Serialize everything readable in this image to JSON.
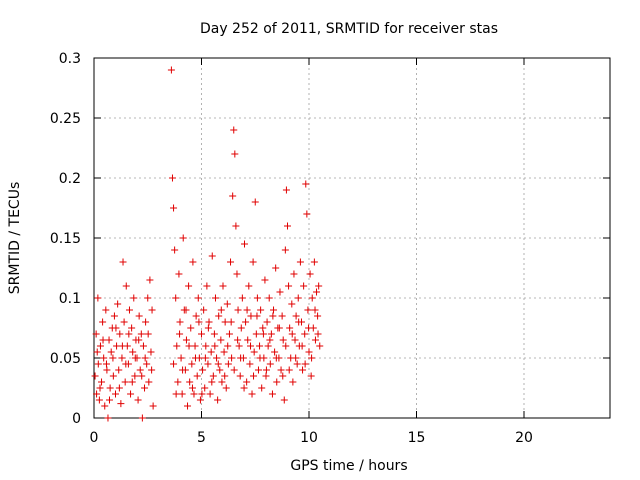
{
  "chart_data": {
    "type": "scatter",
    "title": "Day 252 of 2011, SRMTID for receiver stas",
    "xlabel": "GPS time / hours",
    "ylabel": "SRMTID / TECUs",
    "xlim": [
      0,
      24
    ],
    "ylim": [
      0,
      0.3
    ],
    "xticks": [
      0,
      5,
      10,
      15,
      20
    ],
    "xtick_labels": [
      "0",
      "5",
      "10",
      "15",
      "20"
    ],
    "yticks": [
      0,
      0.05,
      0.1,
      0.15,
      0.2,
      0.25,
      0.3
    ],
    "ytick_labels": [
      "0",
      "0.05",
      "0.1",
      "0.15",
      "0.2",
      "0.25",
      "0.3"
    ],
    "grid": true,
    "marker": "+",
    "color": "#e00000",
    "series": [
      {
        "name": "SRMTID",
        "points": [
          [
            0.05,
            0.035
          ],
          [
            0.1,
            0.07
          ],
          [
            0.12,
            0.02
          ],
          [
            0.18,
            0.1
          ],
          [
            0.2,
            0.045
          ],
          [
            0.25,
            0.015
          ],
          [
            0.3,
            0.06
          ],
          [
            0.35,
            0.03
          ],
          [
            0.4,
            0.08
          ],
          [
            0.45,
            0.05
          ],
          [
            0.5,
            0.01
          ],
          [
            0.55,
            0.09
          ],
          [
            0.6,
            0.04
          ],
          [
            0.65,
            0.0
          ],
          [
            0.7,
            0.065
          ],
          [
            0.75,
            0.025
          ],
          [
            0.8,
            0.055
          ],
          [
            0.85,
            0.075
          ],
          [
            0.9,
            0.035
          ],
          [
            0.95,
            0.085
          ],
          [
            1.0,
            0.02
          ],
          [
            1.05,
            0.06
          ],
          [
            1.1,
            0.095
          ],
          [
            1.15,
            0.04
          ],
          [
            1.2,
            0.07
          ],
          [
            1.25,
            0.012
          ],
          [
            1.3,
            0.05
          ],
          [
            1.35,
            0.13
          ],
          [
            1.4,
            0.08
          ],
          [
            1.45,
            0.03
          ],
          [
            1.5,
            0.11
          ],
          [
            1.55,
            0.06
          ],
          [
            1.6,
            0.045
          ],
          [
            1.65,
            0.09
          ],
          [
            1.7,
            0.02
          ],
          [
            1.75,
            0.075
          ],
          [
            1.8,
            0.055
          ],
          [
            1.85,
            0.1
          ],
          [
            1.9,
            0.035
          ],
          [
            1.95,
            0.065
          ],
          [
            2.0,
            0.05
          ],
          [
            2.05,
            0.015
          ],
          [
            2.1,
            0.085
          ],
          [
            2.15,
            0.04
          ],
          [
            2.2,
            0.07
          ],
          [
            2.25,
            0.0
          ],
          [
            2.3,
            0.06
          ],
          [
            2.35,
            0.025
          ],
          [
            2.4,
            0.08
          ],
          [
            2.45,
            0.045
          ],
          [
            2.5,
            0.1
          ],
          [
            2.55,
            0.03
          ],
          [
            2.6,
            0.115
          ],
          [
            2.65,
            0.055
          ],
          [
            2.7,
            0.09
          ],
          [
            2.75,
            0.01
          ],
          [
            0.15,
            0.055
          ],
          [
            0.28,
            0.025
          ],
          [
            0.42,
            0.065
          ],
          [
            0.58,
            0.045
          ],
          [
            0.72,
            0.015
          ],
          [
            0.88,
            0.05
          ],
          [
            1.02,
            0.075
          ],
          [
            1.18,
            0.025
          ],
          [
            1.32,
            0.06
          ],
          [
            1.48,
            0.045
          ],
          [
            1.62,
            0.07
          ],
          [
            1.78,
            0.03
          ],
          [
            1.92,
            0.05
          ],
          [
            2.08,
            0.065
          ],
          [
            2.22,
            0.035
          ],
          [
            2.38,
            0.05
          ],
          [
            2.52,
            0.07
          ],
          [
            2.68,
            0.04
          ],
          [
            3.6,
            0.29
          ],
          [
            3.65,
            0.2
          ],
          [
            3.7,
            0.175
          ],
          [
            3.75,
            0.14
          ],
          [
            3.8,
            0.1
          ],
          [
            3.85,
            0.06
          ],
          [
            3.9,
            0.03
          ],
          [
            3.95,
            0.12
          ],
          [
            4.0,
            0.08
          ],
          [
            4.05,
            0.05
          ],
          [
            4.1,
            0.02
          ],
          [
            4.15,
            0.15
          ],
          [
            4.2,
            0.09
          ],
          [
            4.25,
            0.04
          ],
          [
            4.3,
            0.065
          ],
          [
            4.35,
            0.01
          ],
          [
            4.4,
            0.11
          ],
          [
            4.45,
            0.03
          ],
          [
            4.5,
            0.075
          ],
          [
            4.55,
            0.045
          ],
          [
            4.6,
            0.13
          ],
          [
            4.65,
            0.02
          ],
          [
            4.7,
            0.06
          ],
          [
            4.75,
            0.085
          ],
          [
            4.8,
            0.035
          ],
          [
            4.85,
            0.1
          ],
          [
            4.9,
            0.05
          ],
          [
            4.95,
            0.015
          ],
          [
            5.0,
            0.07
          ],
          [
            5.05,
            0.04
          ],
          [
            5.1,
            0.09
          ],
          [
            5.15,
            0.025
          ],
          [
            5.2,
            0.06
          ],
          [
            5.25,
            0.11
          ],
          [
            5.3,
            0.045
          ],
          [
            5.35,
            0.08
          ],
          [
            5.4,
            0.02
          ],
          [
            5.45,
            0.055
          ],
          [
            5.5,
            0.135
          ],
          [
            5.55,
            0.035
          ],
          [
            5.6,
            0.07
          ],
          [
            5.65,
            0.1
          ],
          [
            5.7,
            0.05
          ],
          [
            5.75,
            0.015
          ],
          [
            5.8,
            0.085
          ],
          [
            5.85,
            0.04
          ],
          [
            5.9,
            0.065
          ],
          [
            5.95,
            0.03
          ],
          [
            6.0,
            0.11
          ],
          [
            6.05,
            0.055
          ],
          [
            6.1,
            0.08
          ],
          [
            6.15,
            0.025
          ],
          [
            6.2,
            0.095
          ],
          [
            6.25,
            0.045
          ],
          [
            6.3,
            0.07
          ],
          [
            6.35,
            0.13
          ],
          [
            6.4,
            0.05
          ],
          [
            6.45,
            0.185
          ],
          [
            6.5,
            0.24
          ],
          [
            6.55,
            0.22
          ],
          [
            6.6,
            0.16
          ],
          [
            6.65,
            0.12
          ],
          [
            6.7,
            0.09
          ],
          [
            6.75,
            0.06
          ],
          [
            6.8,
            0.035
          ],
          [
            6.85,
            0.075
          ],
          [
            6.9,
            0.1
          ],
          [
            6.95,
            0.05
          ],
          [
            7.0,
            0.145
          ],
          [
            7.05,
            0.08
          ],
          [
            7.1,
            0.03
          ],
          [
            7.15,
            0.065
          ],
          [
            7.2,
            0.11
          ],
          [
            7.25,
            0.045
          ],
          [
            7.3,
            0.085
          ],
          [
            7.35,
            0.02
          ],
          [
            7.4,
            0.13
          ],
          [
            7.45,
            0.055
          ],
          [
            7.5,
            0.18
          ],
          [
            7.55,
            0.07
          ],
          [
            7.6,
            0.1
          ],
          [
            7.65,
            0.04
          ],
          [
            7.7,
            0.06
          ],
          [
            7.75,
            0.09
          ],
          [
            7.8,
            0.025
          ],
          [
            7.85,
            0.075
          ],
          [
            7.9,
            0.05
          ],
          [
            7.95,
            0.115
          ],
          [
            8.0,
            0.035
          ],
          [
            8.05,
            0.08
          ],
          [
            8.1,
            0.06
          ],
          [
            8.15,
            0.1
          ],
          [
            8.2,
            0.045
          ],
          [
            8.25,
            0.07
          ],
          [
            8.3,
            0.02
          ],
          [
            8.35,
            0.09
          ],
          [
            8.4,
            0.055
          ],
          [
            8.45,
            0.125
          ],
          [
            8.5,
            0.03
          ],
          [
            8.55,
            0.075
          ],
          [
            8.6,
            0.05
          ],
          [
            8.65,
            0.105
          ],
          [
            8.7,
            0.04
          ],
          [
            8.75,
            0.085
          ],
          [
            8.8,
            0.065
          ],
          [
            8.85,
            0.015
          ],
          [
            8.9,
            0.14
          ],
          [
            8.95,
            0.19
          ],
          [
            9.0,
            0.16
          ],
          [
            9.05,
            0.11
          ],
          [
            9.1,
            0.075
          ],
          [
            9.15,
            0.05
          ],
          [
            9.2,
            0.095
          ],
          [
            9.25,
            0.03
          ],
          [
            9.3,
            0.12
          ],
          [
            9.35,
            0.065
          ],
          [
            9.4,
            0.085
          ],
          [
            9.45,
            0.045
          ],
          [
            9.5,
            0.1
          ],
          [
            9.55,
            0.06
          ],
          [
            9.6,
            0.13
          ],
          [
            9.65,
            0.08
          ],
          [
            9.7,
            0.04
          ],
          [
            9.75,
            0.11
          ],
          [
            9.8,
            0.07
          ],
          [
            9.85,
            0.195
          ],
          [
            9.9,
            0.17
          ],
          [
            9.95,
            0.09
          ],
          [
            10.0,
            0.055
          ],
          [
            10.05,
            0.12
          ],
          [
            10.1,
            0.035
          ],
          [
            10.15,
            0.1
          ],
          [
            10.2,
            0.075
          ],
          [
            10.25,
            0.13
          ],
          [
            10.3,
            0.065
          ],
          [
            10.35,
            0.105
          ],
          [
            10.4,
            0.085
          ],
          [
            10.45,
            0.11
          ],
          [
            10.5,
            0.06
          ],
          [
            3.7,
            0.045
          ],
          [
            3.82,
            0.02
          ],
          [
            3.98,
            0.07
          ],
          [
            4.12,
            0.04
          ],
          [
            4.28,
            0.09
          ],
          [
            4.42,
            0.06
          ],
          [
            4.58,
            0.025
          ],
          [
            4.72,
            0.05
          ],
          [
            4.88,
            0.08
          ],
          [
            5.02,
            0.02
          ],
          [
            5.18,
            0.05
          ],
          [
            5.32,
            0.075
          ],
          [
            5.48,
            0.03
          ],
          [
            5.62,
            0.06
          ],
          [
            5.78,
            0.045
          ],
          [
            5.92,
            0.09
          ],
          [
            6.08,
            0.035
          ],
          [
            6.22,
            0.06
          ],
          [
            6.38,
            0.08
          ],
          [
            6.52,
            0.04
          ],
          [
            6.68,
            0.065
          ],
          [
            6.82,
            0.05
          ],
          [
            6.98,
            0.025
          ],
          [
            7.12,
            0.09
          ],
          [
            7.28,
            0.06
          ],
          [
            7.42,
            0.035
          ],
          [
            7.58,
            0.085
          ],
          [
            7.72,
            0.05
          ],
          [
            7.88,
            0.07
          ],
          [
            8.02,
            0.04
          ],
          [
            8.18,
            0.065
          ],
          [
            8.32,
            0.085
          ],
          [
            8.48,
            0.05
          ],
          [
            8.62,
            0.075
          ],
          [
            8.78,
            0.035
          ],
          [
            8.92,
            0.06
          ],
          [
            9.08,
            0.04
          ],
          [
            9.22,
            0.07
          ],
          [
            9.38,
            0.05
          ],
          [
            9.52,
            0.08
          ],
          [
            9.68,
            0.06
          ],
          [
            9.82,
            0.045
          ],
          [
            9.98,
            0.075
          ],
          [
            10.12,
            0.05
          ],
          [
            10.28,
            0.09
          ],
          [
            10.42,
            0.07
          ]
        ]
      }
    ]
  }
}
